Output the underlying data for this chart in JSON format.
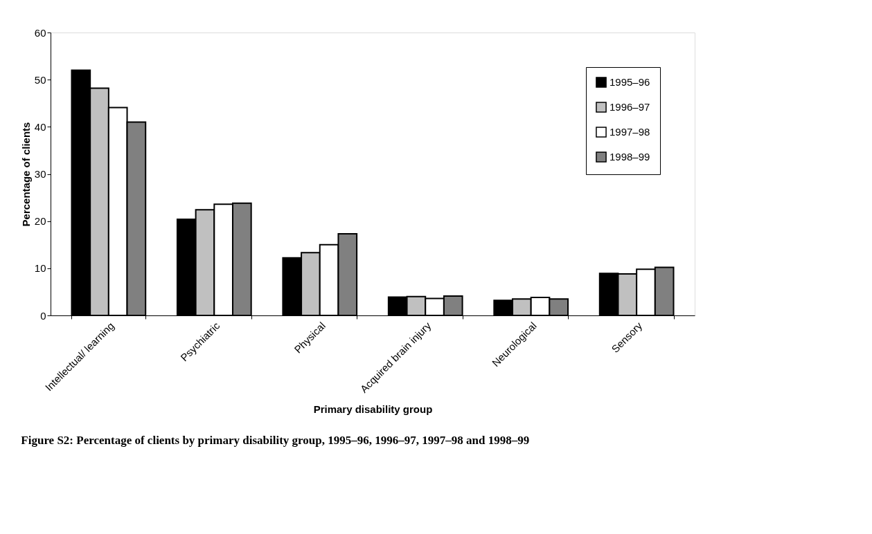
{
  "chart_data": {
    "type": "bar",
    "title": "Figure S2: Percentage of clients by primary disability group, 1995–96, 1996–97, 1997–98 and 1998–99",
    "xlabel": "Primary disability group",
    "ylabel": "Percentage of clients",
    "categories": [
      "Intellectual/ learning",
      "Psychiatric",
      "Physical",
      "Acquired brain injury",
      "Neurological",
      "Sensory"
    ],
    "series": [
      {
        "name": "1995–96",
        "color": "#000000",
        "values": [
          52.0,
          20.4,
          12.2,
          3.9,
          3.2,
          8.9
        ]
      },
      {
        "name": "1996–97",
        "color": "#c0c0c0",
        "values": [
          48.2,
          22.4,
          13.3,
          4.0,
          3.5,
          8.8
        ]
      },
      {
        "name": "1997–98",
        "color": "#ffffff",
        "values": [
          44.1,
          23.6,
          15.0,
          3.6,
          3.8,
          9.8
        ]
      },
      {
        "name": "1998–99",
        "color": "#808080",
        "values": [
          41.0,
          23.8,
          17.3,
          4.1,
          3.5,
          10.2
        ]
      }
    ],
    "ylim": [
      0,
      60
    ],
    "yticks": [
      0,
      10,
      20,
      30,
      40,
      50,
      60
    ],
    "grid": false,
    "legend": "top right"
  }
}
